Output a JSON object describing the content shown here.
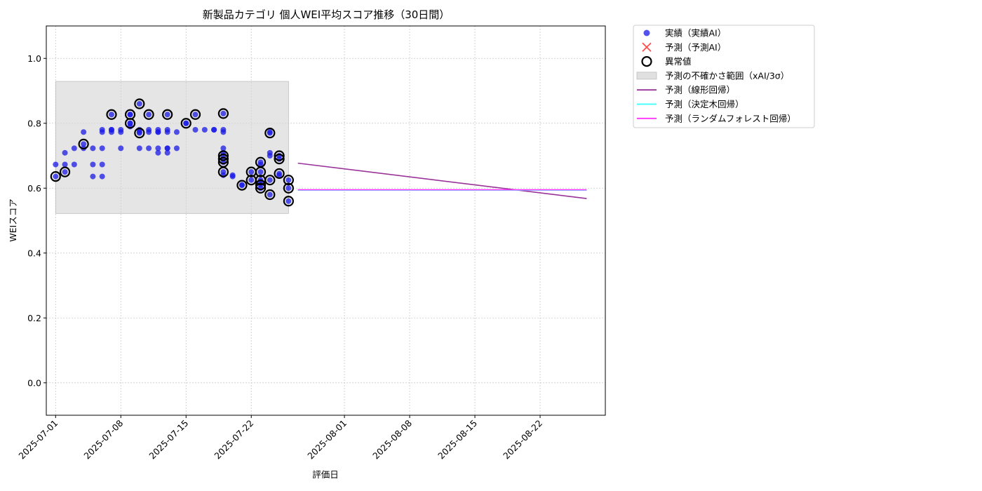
{
  "chart_data": {
    "type": "scatter",
    "title": "新製品カテゴリ 個人WEI平均スコア推移（30日間）",
    "xlabel": "評価日",
    "ylabel": "WEIスコア",
    "ylim": [
      -0.1,
      1.1
    ],
    "yticks": [
      0.0,
      0.2,
      0.4,
      0.6,
      0.8,
      1.0
    ],
    "yticklabels": [
      "0.0",
      "0.2",
      "0.4",
      "0.6",
      "0.8",
      "1.0"
    ],
    "xlim": [
      "2025-06-30",
      "2025-08-29"
    ],
    "xticks": [
      "2025-07-01",
      "2025-07-08",
      "2025-07-15",
      "2025-07-22",
      "2025-08-01",
      "2025-08-08",
      "2025-08-15",
      "2025-08-22"
    ],
    "grid": true,
    "legend_position": "outside-top-right",
    "legend": [
      {
        "label": "実績（実績AI）",
        "kind": "dot",
        "color": "#2626e6"
      },
      {
        "label": "予測（予測AI）",
        "kind": "x",
        "color": "#ff4d4d"
      },
      {
        "label": "異常値",
        "kind": "ring",
        "color": "#000000"
      },
      {
        "label": "予測の不確かさ範囲（xAI/3σ）",
        "kind": "patch",
        "color": "#d3d3d3"
      },
      {
        "label": "予測（線形回帰）",
        "kind": "line",
        "color": "#993399"
      },
      {
        "label": "予測（決定木回帰）",
        "kind": "line",
        "color": "#33ffff"
      },
      {
        "label": "予測（ランダムフォレスト回帰）",
        "kind": "line",
        "color": "#ff33ff"
      }
    ],
    "uncertainty_band": {
      "x": [
        "2025-07-01",
        "2025-07-26"
      ],
      "y": [
        0.522,
        0.929
      ]
    },
    "actual": [
      {
        "x": "2025-07-01",
        "y": 0.636
      },
      {
        "x": "2025-07-01",
        "y": 0.673
      },
      {
        "x": "2025-07-02",
        "y": 0.709
      },
      {
        "x": "2025-07-02",
        "y": 0.65
      },
      {
        "x": "2025-07-02",
        "y": 0.673
      },
      {
        "x": "2025-07-03",
        "y": 0.723
      },
      {
        "x": "2025-07-03",
        "y": 0.673
      },
      {
        "x": "2025-07-04",
        "y": 0.723
      },
      {
        "x": "2025-07-04",
        "y": 0.736
      },
      {
        "x": "2025-07-04",
        "y": 0.773
      },
      {
        "x": "2025-07-05",
        "y": 0.673
      },
      {
        "x": "2025-07-05",
        "y": 0.636
      },
      {
        "x": "2025-07-05",
        "y": 0.723
      },
      {
        "x": "2025-07-06",
        "y": 0.673
      },
      {
        "x": "2025-07-06",
        "y": 0.636
      },
      {
        "x": "2025-07-06",
        "y": 0.723
      },
      {
        "x": "2025-07-06",
        "y": 0.773
      },
      {
        "x": "2025-07-06",
        "y": 0.78
      },
      {
        "x": "2025-07-07",
        "y": 0.78
      },
      {
        "x": "2025-07-07",
        "y": 0.773
      },
      {
        "x": "2025-07-07",
        "y": 0.827
      },
      {
        "x": "2025-07-07",
        "y": 0.78
      },
      {
        "x": "2025-07-08",
        "y": 0.723
      },
      {
        "x": "2025-07-08",
        "y": 0.773
      },
      {
        "x": "2025-07-08",
        "y": 0.78
      },
      {
        "x": "2025-07-09",
        "y": 0.827
      },
      {
        "x": "2025-07-09",
        "y": 0.827
      },
      {
        "x": "2025-07-09",
        "y": 0.8
      },
      {
        "x": "2025-07-09",
        "y": 0.79
      },
      {
        "x": "2025-07-09",
        "y": 0.8
      },
      {
        "x": "2025-07-10",
        "y": 0.723
      },
      {
        "x": "2025-07-10",
        "y": 0.77
      },
      {
        "x": "2025-07-10",
        "y": 0.773
      },
      {
        "x": "2025-07-10",
        "y": 0.86
      },
      {
        "x": "2025-07-10",
        "y": 0.78
      },
      {
        "x": "2025-07-11",
        "y": 0.78
      },
      {
        "x": "2025-07-11",
        "y": 0.827
      },
      {
        "x": "2025-07-11",
        "y": 0.773
      },
      {
        "x": "2025-07-11",
        "y": 0.723
      },
      {
        "x": "2025-07-12",
        "y": 0.709
      },
      {
        "x": "2025-07-12",
        "y": 0.78
      },
      {
        "x": "2025-07-12",
        "y": 0.723
      },
      {
        "x": "2025-07-12",
        "y": 0.773
      },
      {
        "x": "2025-07-12",
        "y": 0.773
      },
      {
        "x": "2025-07-13",
        "y": 0.827
      },
      {
        "x": "2025-07-13",
        "y": 0.78
      },
      {
        "x": "2025-07-13",
        "y": 0.709
      },
      {
        "x": "2025-07-13",
        "y": 0.723
      },
      {
        "x": "2025-07-13",
        "y": 0.723
      },
      {
        "x": "2025-07-13",
        "y": 0.773
      },
      {
        "x": "2025-07-14",
        "y": 0.723
      },
      {
        "x": "2025-07-14",
        "y": 0.773
      },
      {
        "x": "2025-07-15",
        "y": 0.8
      },
      {
        "x": "2025-07-15",
        "y": 0.8
      },
      {
        "x": "2025-07-16",
        "y": 0.827
      },
      {
        "x": "2025-07-16",
        "y": 0.78
      },
      {
        "x": "2025-07-17",
        "y": 0.78
      },
      {
        "x": "2025-07-18",
        "y": 0.78
      },
      {
        "x": "2025-07-18",
        "y": 0.78
      },
      {
        "x": "2025-07-19",
        "y": 0.83
      },
      {
        "x": "2025-07-19",
        "y": 0.78
      },
      {
        "x": "2025-07-19",
        "y": 0.773
      },
      {
        "x": "2025-07-19",
        "y": 0.723
      },
      {
        "x": "2025-07-19",
        "y": 0.7
      },
      {
        "x": "2025-07-19",
        "y": 0.69
      },
      {
        "x": "2025-07-19",
        "y": 0.68
      },
      {
        "x": "2025-07-19",
        "y": 0.65
      },
      {
        "x": "2025-07-19",
        "y": 0.64
      },
      {
        "x": "2025-07-19",
        "y": 0.709
      },
      {
        "x": "2025-07-20",
        "y": 0.636
      },
      {
        "x": "2025-07-20",
        "y": 0.64
      },
      {
        "x": "2025-07-21",
        "y": 0.609
      },
      {
        "x": "2025-07-21",
        "y": 0.61
      },
      {
        "x": "2025-07-22",
        "y": 0.65
      },
      {
        "x": "2025-07-22",
        "y": 0.625
      },
      {
        "x": "2025-07-23",
        "y": 0.68
      },
      {
        "x": "2025-07-23",
        "y": 0.65
      },
      {
        "x": "2025-07-23",
        "y": 0.625
      },
      {
        "x": "2025-07-23",
        "y": 0.61
      },
      {
        "x": "2025-07-23",
        "y": 0.6
      },
      {
        "x": "2025-07-23",
        "y": 0.62
      },
      {
        "x": "2025-07-23",
        "y": 0.673
      },
      {
        "x": "2025-07-24",
        "y": 0.58
      },
      {
        "x": "2025-07-24",
        "y": 0.625
      },
      {
        "x": "2025-07-24",
        "y": 0.77
      },
      {
        "x": "2025-07-24",
        "y": 0.773
      },
      {
        "x": "2025-07-24",
        "y": 0.709
      },
      {
        "x": "2025-07-24",
        "y": 0.7
      },
      {
        "x": "2025-07-25",
        "y": 0.69
      },
      {
        "x": "2025-07-25",
        "y": 0.7
      },
      {
        "x": "2025-07-25",
        "y": 0.645
      },
      {
        "x": "2025-07-25",
        "y": 0.64
      },
      {
        "x": "2025-07-26",
        "y": 0.56
      },
      {
        "x": "2025-07-26",
        "y": 0.6
      },
      {
        "x": "2025-07-26",
        "y": 0.625
      }
    ],
    "anomalies": [
      {
        "x": "2025-07-01",
        "y": 0.636
      },
      {
        "x": "2025-07-02",
        "y": 0.65
      },
      {
        "x": "2025-07-04",
        "y": 0.736
      },
      {
        "x": "2025-07-07",
        "y": 0.827
      },
      {
        "x": "2025-07-09",
        "y": 0.827
      },
      {
        "x": "2025-07-09",
        "y": 0.8
      },
      {
        "x": "2025-07-10",
        "y": 0.77
      },
      {
        "x": "2025-07-10",
        "y": 0.86
      },
      {
        "x": "2025-07-11",
        "y": 0.827
      },
      {
        "x": "2025-07-13",
        "y": 0.827
      },
      {
        "x": "2025-07-15",
        "y": 0.8
      },
      {
        "x": "2025-07-16",
        "y": 0.827
      },
      {
        "x": "2025-07-19",
        "y": 0.83
      },
      {
        "x": "2025-07-19",
        "y": 0.7
      },
      {
        "x": "2025-07-19",
        "y": 0.69
      },
      {
        "x": "2025-07-19",
        "y": 0.68
      },
      {
        "x": "2025-07-19",
        "y": 0.65
      },
      {
        "x": "2025-07-21",
        "y": 0.609
      },
      {
        "x": "2025-07-22",
        "y": 0.65
      },
      {
        "x": "2025-07-22",
        "y": 0.625
      },
      {
        "x": "2025-07-23",
        "y": 0.68
      },
      {
        "x": "2025-07-23",
        "y": 0.65
      },
      {
        "x": "2025-07-23",
        "y": 0.625
      },
      {
        "x": "2025-07-23",
        "y": 0.61
      },
      {
        "x": "2025-07-23",
        "y": 0.6
      },
      {
        "x": "2025-07-24",
        "y": 0.58
      },
      {
        "x": "2025-07-24",
        "y": 0.625
      },
      {
        "x": "2025-07-24",
        "y": 0.77
      },
      {
        "x": "2025-07-25",
        "y": 0.7
      },
      {
        "x": "2025-07-25",
        "y": 0.69
      },
      {
        "x": "2025-07-25",
        "y": 0.645
      },
      {
        "x": "2025-07-26",
        "y": 0.56
      },
      {
        "x": "2025-07-26",
        "y": 0.6
      },
      {
        "x": "2025-07-26",
        "y": 0.625
      }
    ],
    "forecasts": [
      {
        "name": "予測（線形回帰）",
        "color": "#993399",
        "x": [
          "2025-07-27",
          "2025-08-27"
        ],
        "y": [
          0.677,
          0.568
        ]
      },
      {
        "name": "予測（決定木回帰）",
        "color": "#33ffff",
        "x": [
          "2025-07-27",
          "2025-08-27"
        ],
        "y": [
          0.594,
          0.594
        ]
      },
      {
        "name": "予測（ランダムフォレスト回帰）",
        "color": "#ff33ff",
        "x": [
          "2025-07-27",
          "2025-08-27"
        ],
        "y": [
          0.595,
          0.595
        ]
      }
    ]
  }
}
